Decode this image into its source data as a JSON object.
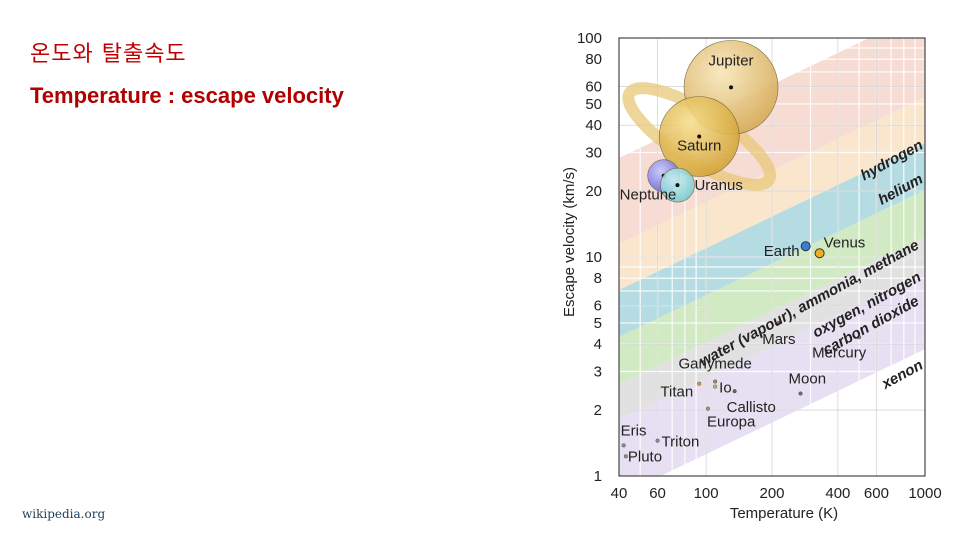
{
  "slide": {
    "title_ko": "온도와 탈출속도",
    "title_en": "Temperature : escape velocity",
    "source": "wikipedia.org"
  },
  "chart_data": {
    "type": "scatter",
    "xscale": "log",
    "yscale": "log",
    "xlabel": "Temperature (K)",
    "ylabel": "Escape velocity (km/s)",
    "xlim": [
      40,
      1000
    ],
    "ylim": [
      1,
      100
    ],
    "x_ticks": [
      40,
      60,
      100,
      200,
      400,
      600,
      1000
    ],
    "y_ticks": [
      1,
      2,
      3,
      4,
      5,
      6,
      8,
      10,
      20,
      30,
      40,
      50,
      60,
      80,
      100
    ],
    "bands": [
      {
        "name": "hydrogen",
        "color": "#f6d6cc"
      },
      {
        "name": "helium",
        "color": "#f8e2c4"
      },
      {
        "name": "water (vapour), ammonia, methane",
        "color": "#a9d6de"
      },
      {
        "name": "oxygen, nitrogen",
        "color": "#c9e6b8"
      },
      {
        "name": "carbon dioxide",
        "color": "#dcdcdc"
      },
      {
        "name": "xenon",
        "color": "#e3daf0"
      }
    ],
    "bodies": [
      {
        "name": "Jupiter",
        "temperature": 130,
        "escape_velocity": 59.5,
        "color": "#e6c56e",
        "label_pos": "above"
      },
      {
        "name": "Saturn",
        "temperature": 93,
        "escape_velocity": 35.5,
        "color": "#e8c44a",
        "label_pos": "below"
      },
      {
        "name": "Uranus",
        "temperature": 74,
        "escape_velocity": 21.3,
        "color": "#9fdede",
        "label_pos": "right"
      },
      {
        "name": "Neptune",
        "temperature": 64,
        "escape_velocity": 23.5,
        "color": "#8c8ce8",
        "label_pos": "below-left"
      },
      {
        "name": "Venus",
        "temperature": 330,
        "escape_velocity": 10.4,
        "color": "#f0b020",
        "label_pos": "above-right"
      },
      {
        "name": "Earth",
        "temperature": 285,
        "escape_velocity": 11.2,
        "color": "#3a7ed8",
        "label_pos": "left"
      },
      {
        "name": "Mars",
        "temperature": 215,
        "escape_velocity": 5.0,
        "color": "#c06040",
        "label_pos": "below"
      },
      {
        "name": "Mercury",
        "temperature": 500,
        "escape_velocity": 4.3,
        "color": "#9a8a8a",
        "label_pos": "below"
      },
      {
        "name": "Ganymede",
        "temperature": 110,
        "escape_velocity": 2.7,
        "color": "#9a9060",
        "label_pos": "above"
      },
      {
        "name": "Titan",
        "temperature": 93,
        "escape_velocity": 2.64,
        "color": "#d8a040",
        "label_pos": "left"
      },
      {
        "name": "Io",
        "temperature": 110,
        "escape_velocity": 2.56,
        "color": "#c8c040",
        "label_pos": "right"
      },
      {
        "name": "Callisto",
        "temperature": 135,
        "escape_velocity": 2.44,
        "color": "#7a6050",
        "label_pos": "below"
      },
      {
        "name": "Moon",
        "temperature": 270,
        "escape_velocity": 2.38,
        "color": "#707070",
        "label_pos": "above"
      },
      {
        "name": "Europa",
        "temperature": 102,
        "escape_velocity": 2.03,
        "color": "#a89880",
        "label_pos": "below"
      },
      {
        "name": "Eris",
        "temperature": 42,
        "escape_velocity": 1.38,
        "color": "#909090",
        "label_pos": "above"
      },
      {
        "name": "Triton",
        "temperature": 60,
        "escape_velocity": 1.45,
        "color": "#909090",
        "label_pos": "right"
      },
      {
        "name": "Pluto",
        "temperature": 43,
        "escape_velocity": 1.23,
        "color": "#909090",
        "label_pos": "right"
      }
    ]
  }
}
